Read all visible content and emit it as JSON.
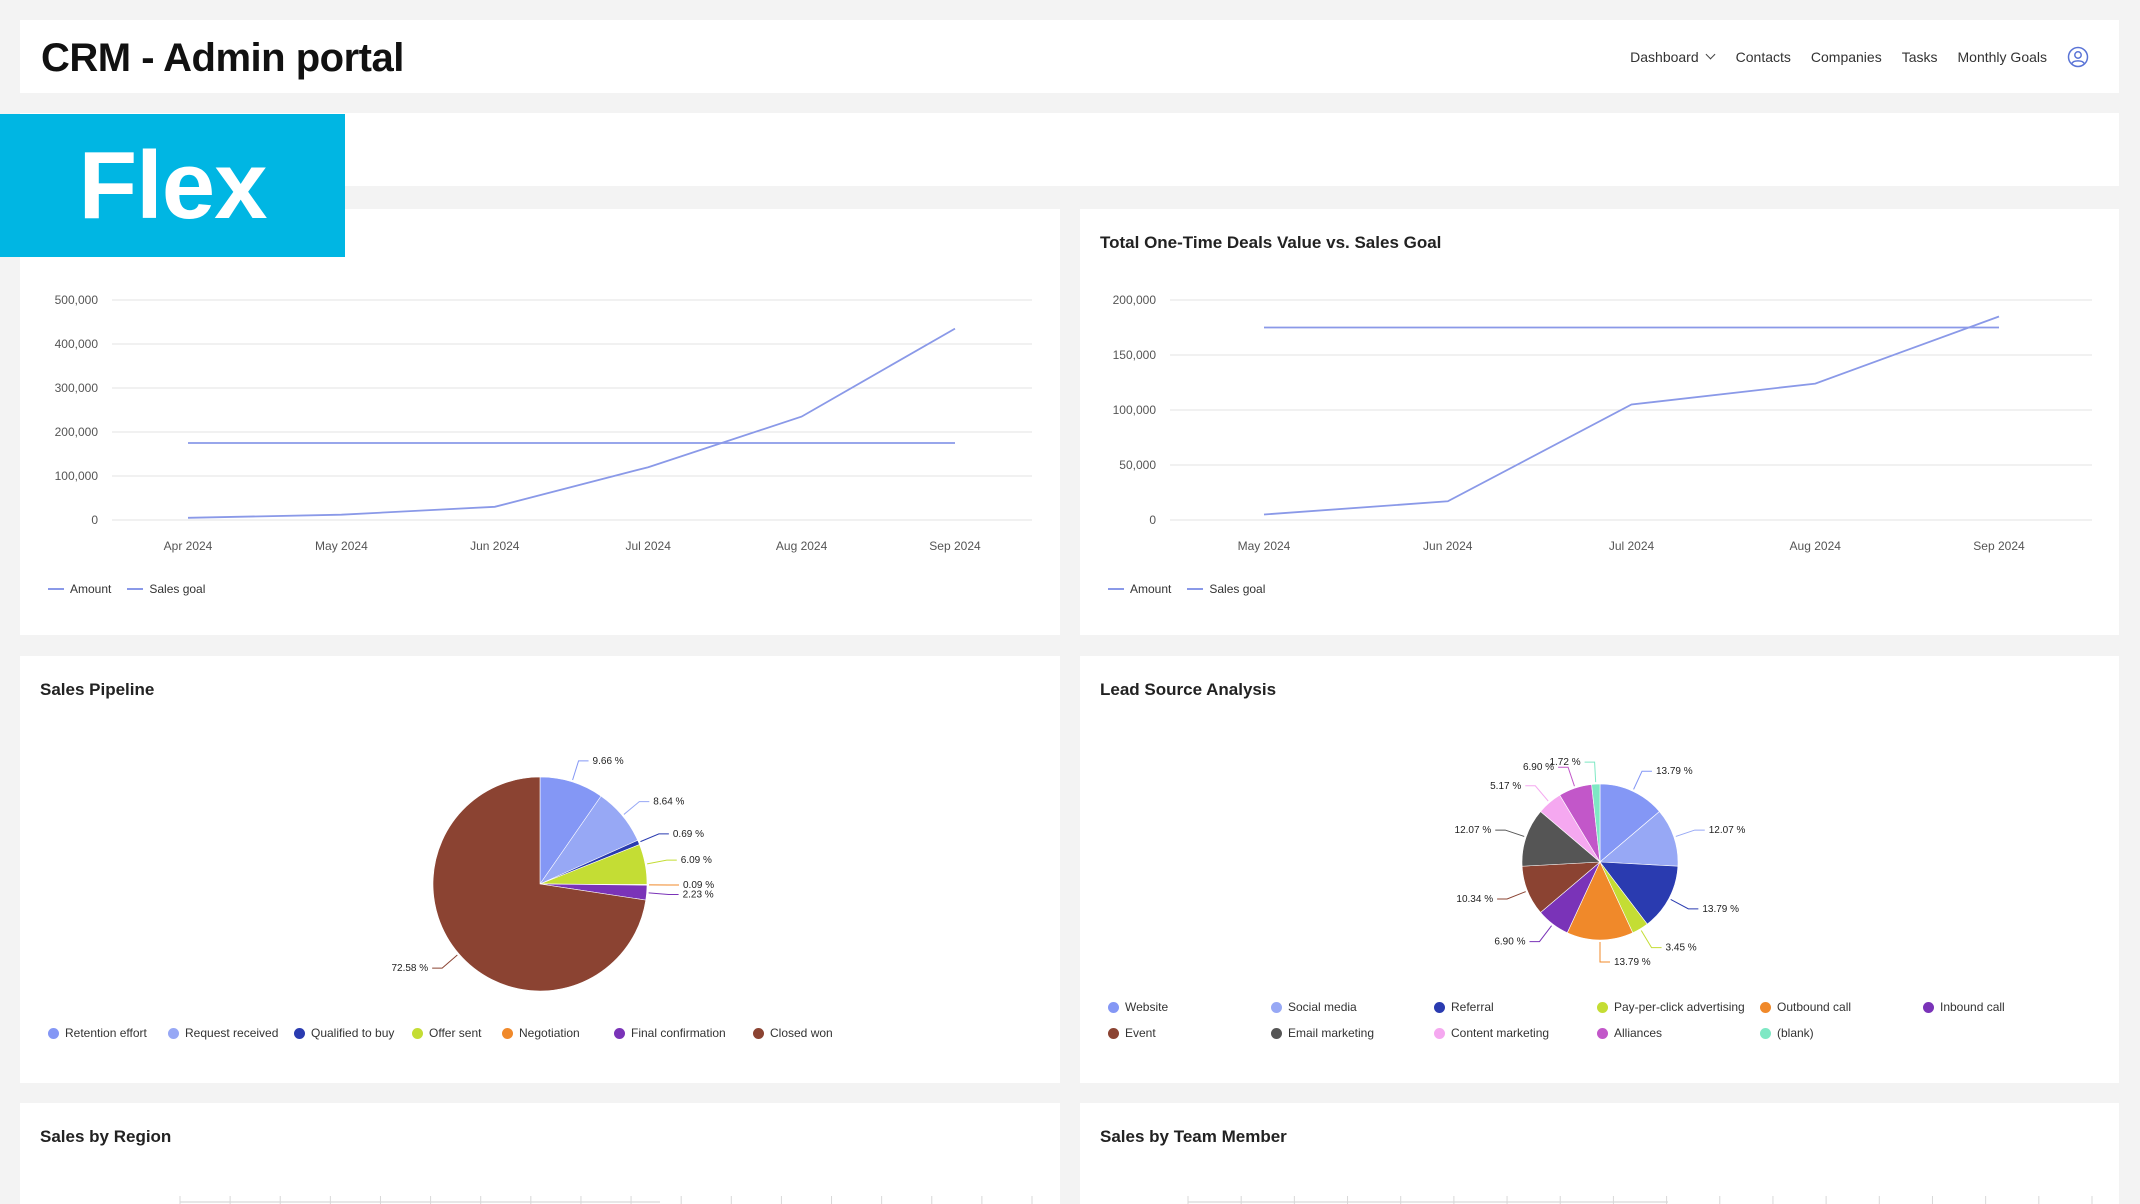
{
  "header": {
    "title": "CRM - Admin portal",
    "nav": [
      "Dashboard",
      "Contacts",
      "Companies",
      "Tasks",
      "Monthly Goals"
    ]
  },
  "badge": "Flex",
  "colors": {
    "accent": "#00b6e3",
    "line": "#8a99e8"
  },
  "icons": {
    "user": "user-circle-icon",
    "dashboard_dropdown": "chevron-down-icon"
  },
  "cards": {
    "recurring": {
      "title": ""
    },
    "onetime": {
      "title": "Total One-Time Deals Value vs. Sales Goal"
    },
    "pipeline": {
      "title": "Sales Pipeline"
    },
    "leads": {
      "title": "Lead Source Analysis"
    },
    "region": {
      "title": "Sales by Region"
    },
    "team": {
      "title": "Sales by Team Member"
    }
  },
  "chart_data": [
    {
      "type": "line",
      "title": "",
      "x": [
        "Apr 2024",
        "May 2024",
        "Jun 2024",
        "Jul 2024",
        "Aug 2024",
        "Sep 2024"
      ],
      "y_ticks": [
        "500,000",
        "400,000",
        "300,000",
        "200,000",
        "100,000",
        "0"
      ],
      "ylim": [
        0,
        500000
      ],
      "series": [
        {
          "name": "Amount",
          "values": [
            5000,
            12000,
            30000,
            120000,
            235000,
            435000
          ]
        },
        {
          "name": "Sales goal",
          "values": [
            175000,
            175000,
            175000,
            175000,
            175000,
            175000
          ]
        }
      ],
      "legend": "bottom-left",
      "grid": true
    },
    {
      "type": "line",
      "title": "Total One-Time Deals Value vs. Sales Goal",
      "x": [
        "May 2024",
        "Jun 2024",
        "Jul 2024",
        "Aug 2024",
        "Sep 2024"
      ],
      "y_ticks": [
        "200,000",
        "150,000",
        "100,000",
        "50,000",
        "0"
      ],
      "ylim": [
        0,
        200000
      ],
      "series": [
        {
          "name": "Amount",
          "values": [
            5000,
            17000,
            105000,
            124000,
            185000
          ]
        },
        {
          "name": "Sales goal",
          "values": [
            175000,
            175000,
            175000,
            175000,
            175000
          ]
        }
      ],
      "legend": "bottom-left",
      "grid": true
    },
    {
      "type": "pie",
      "title": "Sales Pipeline",
      "slices": [
        {
          "name": "Retention effort",
          "value": 9.66,
          "label": "9.66 %",
          "color": "#8497f5"
        },
        {
          "name": "Request received",
          "value": 8.64,
          "label": "8.64 %",
          "color": "#97a8f5"
        },
        {
          "name": "Qualified to buy",
          "value": 0.69,
          "label": "0.69 %",
          "color": "#2a3bb0"
        },
        {
          "name": "Offer sent",
          "value": 6.09,
          "label": "6.09 %",
          "color": "#c4dd34"
        },
        {
          "name": "Negotiation",
          "value": 0.09,
          "label": "0.09 %",
          "color": "#f0892a"
        },
        {
          "name": "Final confirmation",
          "value": 2.23,
          "label": "2.23 %",
          "color": "#7a33b8"
        },
        {
          "name": "Closed won",
          "value": 72.58,
          "label": "72.58 %",
          "color": "#8b4332"
        }
      ],
      "legend": "bottom"
    },
    {
      "type": "pie",
      "title": "Lead Source Analysis",
      "slices": [
        {
          "name": "Website",
          "value": 13.79,
          "label": "13.79 %",
          "color": "#8497f5"
        },
        {
          "name": "Social media",
          "value": 12.07,
          "label": "12.07 %",
          "color": "#97a8f5"
        },
        {
          "name": "Referral",
          "value": 13.79,
          "label": "13.79 %",
          "color": "#2a3bb0"
        },
        {
          "name": "Pay-per-click advertising",
          "value": 3.45,
          "label": "3.45 %",
          "color": "#c4dd34"
        },
        {
          "name": "Outbound call",
          "value": 13.79,
          "label": "13.79 %",
          "color": "#f0892a"
        },
        {
          "name": "Inbound call",
          "value": 6.9,
          "label": "6.90 %",
          "color": "#7a33b8"
        },
        {
          "name": "Event",
          "value": 10.34,
          "label": "10.34 %",
          "color": "#8b4332"
        },
        {
          "name": "Email marketing",
          "value": 12.07,
          "label": "12.07 %",
          "color": "#555555"
        },
        {
          "name": "Content marketing",
          "value": 5.17,
          "label": "5.17 %",
          "color": "#f5a8f0"
        },
        {
          "name": "Alliances",
          "value": 6.9,
          "label": "6.90 %",
          "color": "#c257c9"
        },
        {
          "name": "(blank)",
          "value": 1.72,
          "label": "1.72 %",
          "color": "#7ee8c4"
        }
      ],
      "legend": "bottom"
    }
  ]
}
